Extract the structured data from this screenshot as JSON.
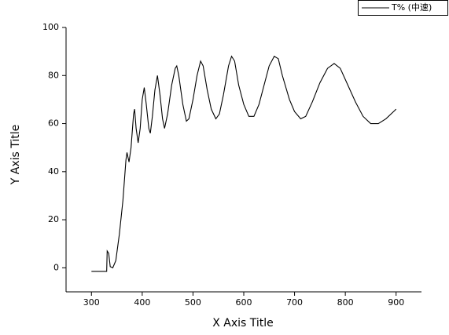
{
  "chart_data": {
    "type": "line",
    "x_label": "X Axis Title",
    "y_label": "Y Axis Title",
    "x": [
      300,
      330,
      331,
      334,
      337,
      342,
      348,
      355,
      362,
      368,
      370,
      374,
      378,
      383,
      385,
      388,
      392,
      396,
      400,
      404,
      408,
      413,
      416,
      420,
      425,
      430,
      435,
      440,
      444,
      450,
      458,
      465,
      468,
      472,
      480,
      487,
      492,
      500,
      508,
      515,
      520,
      528,
      536,
      545,
      552,
      560,
      570,
      576,
      582,
      590,
      600,
      610,
      620,
      630,
      640,
      650,
      660,
      668,
      676,
      690,
      700,
      712,
      722,
      735,
      750,
      765,
      778,
      790,
      805,
      820,
      835,
      850,
      865,
      880,
      895,
      900
    ],
    "series": [
      {
        "name": "T% (中速)",
        "color": "#000000",
        "values": [
          -1.5,
          -1.5,
          7,
          6,
          0.5,
          0,
          3,
          14,
          28,
          45,
          48,
          44,
          50,
          64,
          66,
          58,
          52,
          58,
          70,
          75,
          68,
          58,
          56,
          63,
          74,
          80,
          72,
          62,
          58,
          64,
          76,
          83,
          84,
          80,
          68,
          61,
          62,
          70,
          80,
          86,
          84,
          74,
          66,
          62,
          64,
          72,
          84,
          88,
          86,
          76,
          68,
          63,
          63,
          68,
          76,
          84,
          88,
          87,
          80,
          70,
          65,
          62,
          63,
          69,
          77,
          83,
          85,
          83,
          76,
          69,
          63,
          60,
          60,
          62,
          65,
          66
        ]
      }
    ],
    "xlim": [
      250,
      950
    ],
    "xticks": [
      300,
      400,
      500,
      600,
      700,
      800,
      900
    ],
    "ylim": [
      -10,
      100
    ],
    "yticks": [
      0,
      20,
      40,
      60,
      80,
      100
    ],
    "legend": "top right"
  }
}
